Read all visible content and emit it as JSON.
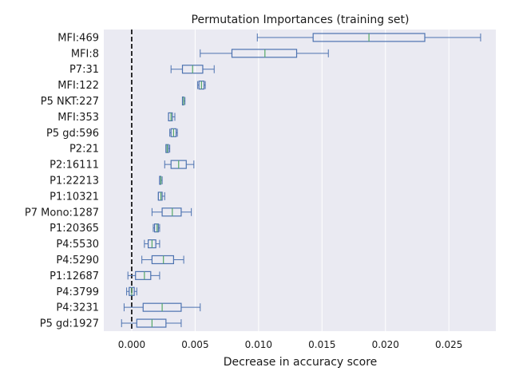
{
  "chart_data": {
    "type": "boxplot",
    "orientation": "horizontal",
    "title": "Permutation Importances (training set)",
    "xlabel": "Decrease in accuracy score",
    "ylabel": "",
    "xlim": [
      -0.0022,
      0.0287
    ],
    "x_ticks": [
      0.0,
      0.005,
      0.01,
      0.015,
      0.02,
      0.025
    ],
    "x_tick_labels": [
      "0.000",
      "0.005",
      "0.010",
      "0.015",
      "0.020",
      "0.025"
    ],
    "grid": true,
    "reference_line": {
      "x": 0.0,
      "style": "dashed",
      "color": "#000000"
    },
    "colors": {
      "background": "#eaeaf2",
      "grid": "#ffffff",
      "box": "#4c72b0",
      "median": "#55a868"
    },
    "features": [
      {
        "label": "MFI:469",
        "whislo": 0.0099,
        "q1": 0.0143,
        "med": 0.0187,
        "q3": 0.0231,
        "whishi": 0.0275
      },
      {
        "label": "MFI:8",
        "whislo": 0.0054,
        "q1": 0.0079,
        "med": 0.0105,
        "q3": 0.013,
        "whishi": 0.0155
      },
      {
        "label": "P7:31",
        "whislo": 0.0031,
        "q1": 0.004,
        "med": 0.0048,
        "q3": 0.0056,
        "whishi": 0.0065
      },
      {
        "label": "MFI:122",
        "whislo": 0.0052,
        "q1": 0.0053,
        "med": 0.0055,
        "q3": 0.0057,
        "whishi": 0.0058
      },
      {
        "label": "P5 NKT:227",
        "whislo": 0.004,
        "q1": 0.004,
        "med": 0.0041,
        "q3": 0.0041,
        "whishi": 0.0042
      },
      {
        "label": "MFI:353",
        "whislo": 0.0029,
        "q1": 0.0029,
        "med": 0.0031,
        "q3": 0.0032,
        "whishi": 0.0034
      },
      {
        "label": "P5 gd:596",
        "whislo": 0.003,
        "q1": 0.0031,
        "med": 0.0033,
        "q3": 0.0035,
        "whishi": 0.0036
      },
      {
        "label": "P2:21",
        "whislo": 0.0027,
        "q1": 0.0027,
        "med": 0.0028,
        "q3": 0.0029,
        "whishi": 0.003
      },
      {
        "label": "P2:16111",
        "whislo": 0.0026,
        "q1": 0.0031,
        "med": 0.0037,
        "q3": 0.0043,
        "whishi": 0.0049
      },
      {
        "label": "P1:22213",
        "whislo": 0.0022,
        "q1": 0.0022,
        "med": 0.0023,
        "q3": 0.0023,
        "whishi": 0.0024
      },
      {
        "label": "P1:10321",
        "whislo": 0.0021,
        "q1": 0.0021,
        "med": 0.0023,
        "q3": 0.0024,
        "whishi": 0.0026
      },
      {
        "label": "P7 Mono:1287",
        "whislo": 0.0016,
        "q1": 0.0024,
        "med": 0.0032,
        "q3": 0.0039,
        "whishi": 0.0047
      },
      {
        "label": "P1:20365",
        "whislo": 0.0017,
        "q1": 0.0018,
        "med": 0.002,
        "q3": 0.0021,
        "whishi": 0.0022
      },
      {
        "label": "P4:5530",
        "whislo": 0.001,
        "q1": 0.0013,
        "med": 0.0016,
        "q3": 0.0019,
        "whishi": 0.0022
      },
      {
        "label": "P4:5290",
        "whislo": 0.0008,
        "q1": 0.0016,
        "med": 0.0025,
        "q3": 0.0033,
        "whishi": 0.0041
      },
      {
        "label": "P1:12687",
        "whislo": -0.0003,
        "q1": 0.0003,
        "med": 0.001,
        "q3": 0.0015,
        "whishi": 0.0022
      },
      {
        "label": "P4:3799",
        "whislo": -0.0004,
        "q1": -0.0002,
        "med": 0.0,
        "q3": 0.0002,
        "whishi": 0.0004
      },
      {
        "label": "P4:3231",
        "whislo": -0.0006,
        "q1": 0.0009,
        "med": 0.0024,
        "q3": 0.0039,
        "whishi": 0.0054
      },
      {
        "label": "P5 gd:1927",
        "whislo": -0.0008,
        "q1": 0.0004,
        "med": 0.0016,
        "q3": 0.0027,
        "whishi": 0.0039
      }
    ]
  }
}
